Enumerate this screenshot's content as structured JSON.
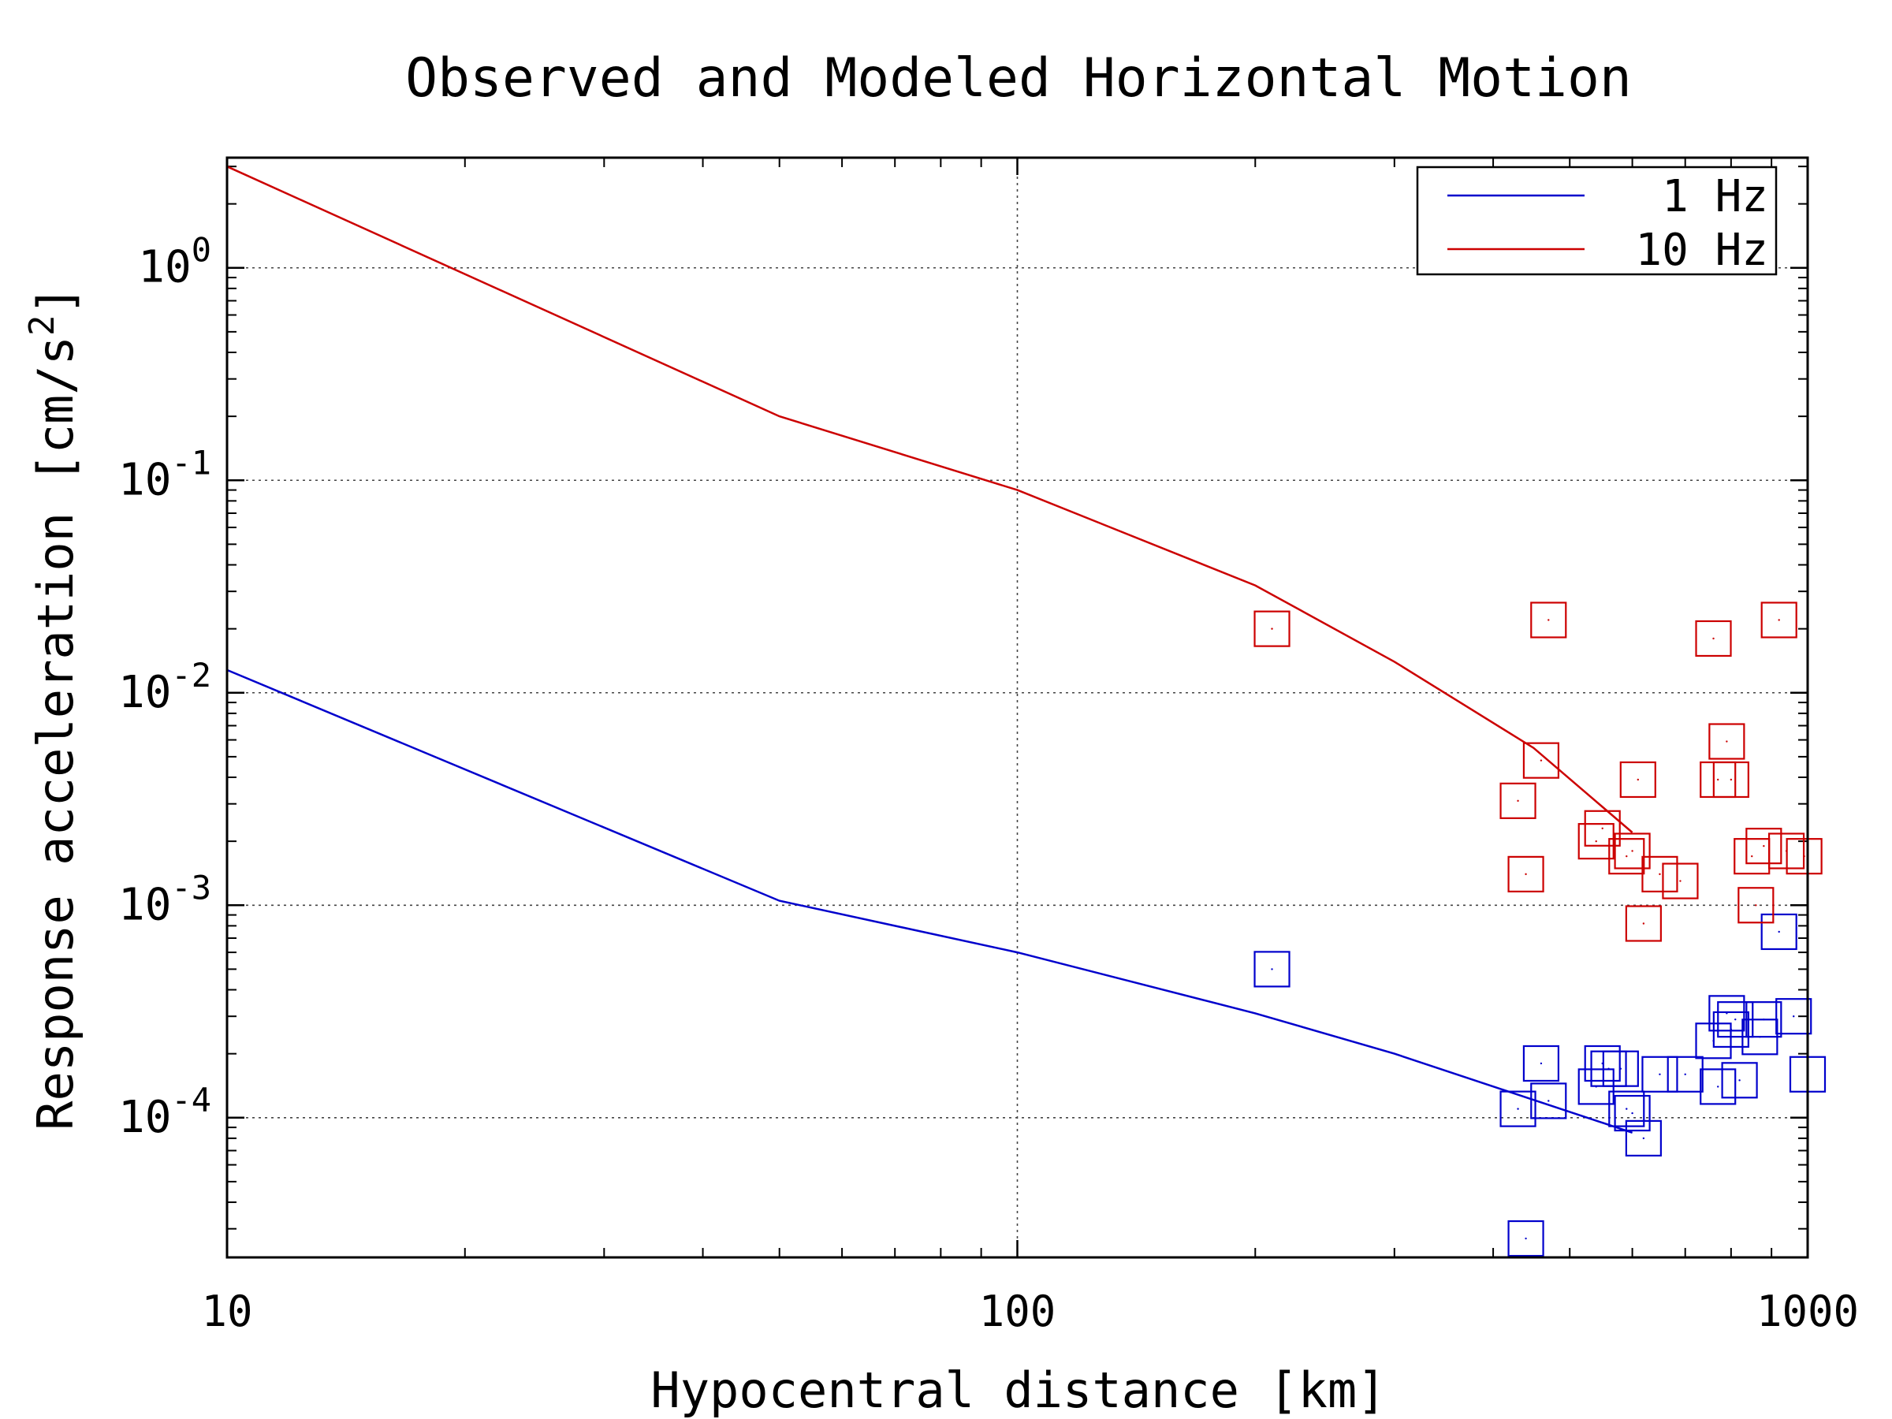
{
  "chart_data": {
    "type": "scatter",
    "title": "Observed and Modeled Horizontal Motion",
    "xlabel": "Hypocentral distance [km]",
    "ylabel_main": "Response acceleration [cm/s",
    "ylabel_sup": "2",
    "ylabel_close": "]",
    "x_scale": "log",
    "y_scale": "log",
    "xlim": [
      10,
      1000
    ],
    "ylim": [
      2.2e-05,
      3.3
    ],
    "grid": true,
    "legend_position": "top-right",
    "x_ticks": [
      {
        "value": 10,
        "label": "10"
      },
      {
        "value": 100,
        "label": "100"
      },
      {
        "value": 1000,
        "label": "1000"
      }
    ],
    "y_ticks": [
      {
        "value": 1,
        "base": "10",
        "exp": "0"
      },
      {
        "value": 0.1,
        "base": "10",
        "exp": "-1"
      },
      {
        "value": 0.01,
        "base": "10",
        "exp": "-2"
      },
      {
        "value": 0.001,
        "base": "10",
        "exp": "-3"
      },
      {
        "value": 0.0001,
        "base": "10",
        "exp": "-4"
      }
    ],
    "series": [
      {
        "name": "1 Hz",
        "color": "#0000cc",
        "model": {
          "x": [
            10,
            50,
            100,
            200,
            300,
            600
          ],
          "y": [
            0.0128,
            0.00105,
            0.0006,
            0.00031,
            0.0002,
            8.5e-05
          ]
        },
        "observed": {
          "x": [
            210,
            430,
            440,
            460,
            470,
            540,
            550,
            560,
            580,
            590,
            600,
            620,
            650,
            700,
            760,
            770,
            790,
            800,
            810,
            820,
            870,
            880,
            920,
            960,
            1000
          ],
          "y": [
            0.0005,
            0.00011,
            2.7e-05,
            0.00018,
            0.00012,
            0.00014,
            0.00018,
            0.00017,
            0.00017,
            0.00011,
            0.000105,
            8e-05,
            0.00016,
            0.00016,
            0.00023,
            0.00014,
            0.00031,
            0.00026,
            0.00029,
            0.00015,
            0.00024,
            0.00029,
            0.00075,
            0.0003,
            0.00016
          ]
        }
      },
      {
        "name": "10 Hz",
        "color": "#cc0000",
        "model": {
          "x": [
            10,
            50,
            100,
            200,
            300,
            450,
            600
          ],
          "y": [
            3.0,
            0.2,
            0.09,
            0.032,
            0.014,
            0.0055,
            0.0022
          ]
        },
        "observed": {
          "x": [
            210,
            430,
            440,
            460,
            470,
            540,
            550,
            590,
            600,
            610,
            620,
            650,
            690,
            760,
            770,
            790,
            800,
            850,
            860,
            880,
            920,
            940,
            990
          ],
          "y": [
            0.02,
            0.0031,
            0.0014,
            0.0048,
            0.022,
            0.002,
            0.0023,
            0.0017,
            0.0018,
            0.0039,
            0.00082,
            0.0014,
            0.0013,
            0.018,
            0.0039,
            0.0059,
            0.0039,
            0.0017,
            0.001,
            0.0019,
            0.022,
            0.0018,
            0.0017
          ]
        }
      }
    ]
  }
}
